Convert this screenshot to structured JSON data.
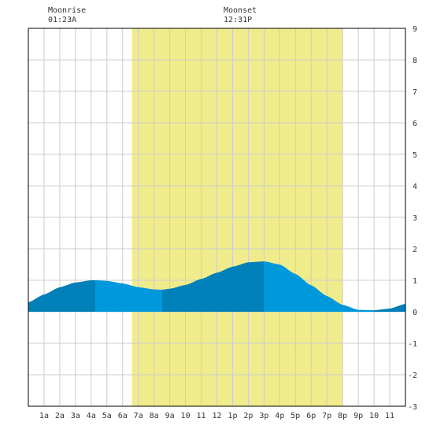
{
  "moon": {
    "rise_label": "Moonrise",
    "rise_time": "01:23A",
    "set_label": "Moonset",
    "set_time": "12:31P"
  },
  "chart_data": {
    "type": "area",
    "title": "",
    "xlabel": "",
    "ylabel": "",
    "xlim": [
      0,
      24
    ],
    "ylim": [
      -3,
      9
    ],
    "grid": true,
    "x_tick_labels": [
      "1a",
      "2a",
      "3a",
      "4a",
      "5a",
      "6a",
      "7a",
      "8a",
      "9a",
      "10",
      "11",
      "12",
      "1p",
      "2p",
      "3p",
      "4p",
      "5p",
      "6p",
      "7p",
      "8p",
      "9p",
      "10",
      "11"
    ],
    "y_tick_labels": [
      "9",
      "8",
      "7",
      "6",
      "5",
      "4",
      "3",
      "2",
      "1",
      "0",
      "-1",
      "-2",
      "-3"
    ],
    "y_ticks": [
      9,
      8,
      7,
      6,
      5,
      4,
      3,
      2,
      1,
      0,
      -1,
      -2,
      -3
    ],
    "daylight": {
      "start_hour": 6.6,
      "end_hour": 20.0
    },
    "tide_extremes": [
      {
        "hour": 4.3,
        "height": 1.0
      },
      {
        "hour": 8.5,
        "height": 0.7
      },
      {
        "hour": 15.0,
        "height": 1.6
      },
      {
        "hour": 22.0,
        "height": 0.05
      }
    ],
    "tide_series": {
      "name": "",
      "x": [
        0,
        1,
        2,
        3,
        4,
        4.3,
        5,
        6,
        7,
        8,
        8.5,
        9,
        10,
        11,
        12,
        13,
        14,
        15,
        16,
        17,
        18,
        19,
        20,
        21,
        22,
        23,
        24
      ],
      "values": [
        0.3,
        0.55,
        0.78,
        0.93,
        1.0,
        1.0,
        0.98,
        0.9,
        0.78,
        0.71,
        0.7,
        0.73,
        0.85,
        1.04,
        1.24,
        1.43,
        1.57,
        1.6,
        1.5,
        1.2,
        0.84,
        0.5,
        0.22,
        0.06,
        0.05,
        0.1,
        0.25
      ]
    },
    "band_boundaries": [
      4.3,
      8.5,
      15.0,
      22.0
    ],
    "colors": {
      "daylight": "#f0ec8c",
      "tide_dark": "#0080b8",
      "tide_light": "#0098dc",
      "grid": "#cccccc",
      "axis": "#000000"
    }
  }
}
